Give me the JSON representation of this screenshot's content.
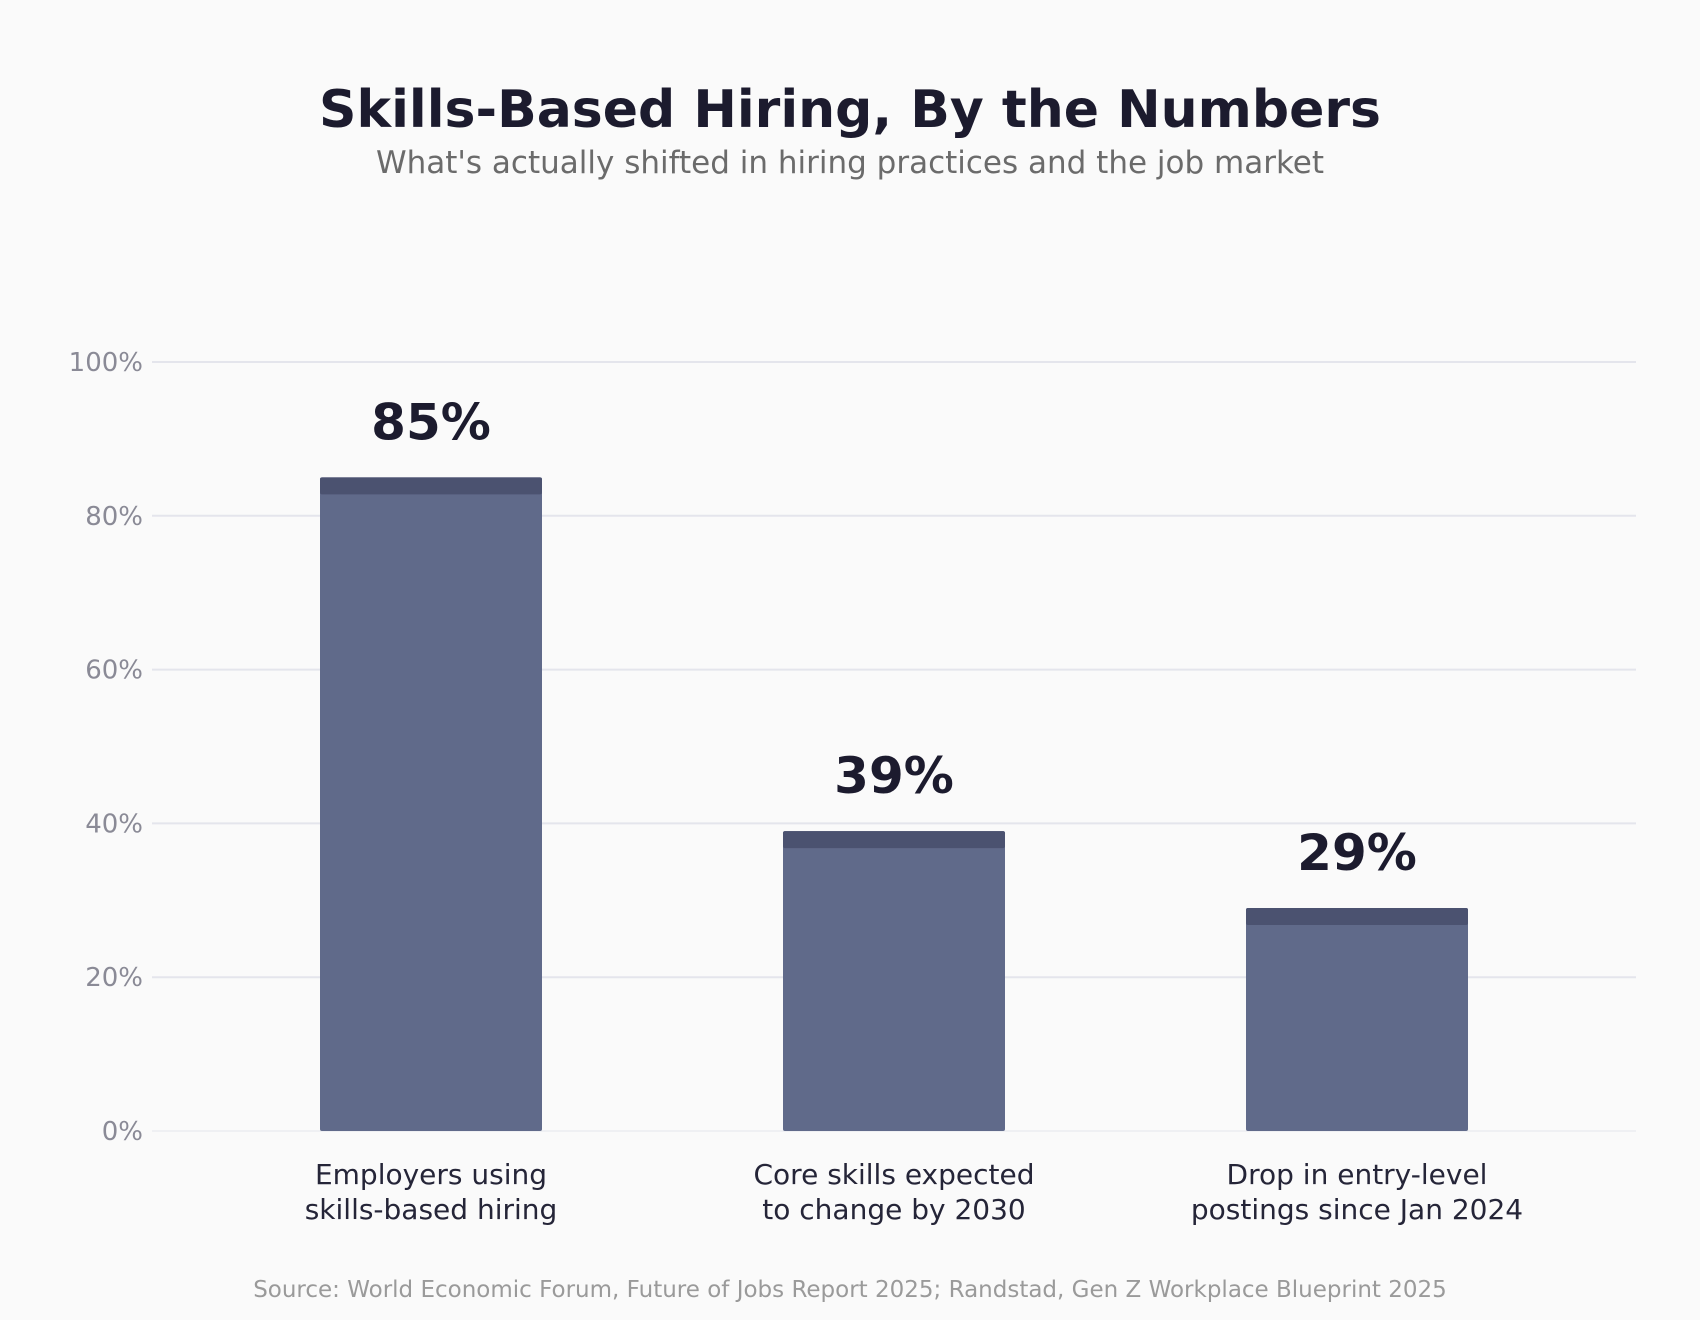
{
  "header": {
    "title": "Skills-Based Hiring, By the Numbers",
    "subtitle": "What's actually shifted in hiring practices and the job market"
  },
  "footer": {
    "source": "Source: World Economic Forum, Future of Jobs Report 2025; Randstad, Gen Z Workplace Blueprint 2025"
  },
  "chart_data": {
    "type": "bar",
    "title": "Skills-Based Hiring, By the Numbers",
    "subtitle": "What's actually shifted in hiring practices and the job market",
    "xlabel": "",
    "ylabel": "",
    "categories": [
      [
        "Employers using",
        "skills-based hiring"
      ],
      [
        "Core skills expected",
        "to change by 2030"
      ],
      [
        "Drop in entry-level",
        "postings since Jan 2024"
      ]
    ],
    "values": [
      85,
      39,
      29
    ],
    "value_labels": [
      "85%",
      "39%",
      "29%"
    ],
    "ylim": [
      0,
      100
    ],
    "yticks": [
      0,
      20,
      40,
      60,
      80,
      100
    ],
    "ytick_labels": [
      "0%",
      "20%",
      "40%",
      "60%",
      "80%",
      "100%"
    ],
    "grid": true,
    "legend": "none",
    "colors": {
      "bar": "#606a8a",
      "bar_cap": "#4b5270",
      "grid": "#e4e5ec",
      "tick": "#8a8a96",
      "category": "#252538",
      "value": "#1c1b2e"
    }
  }
}
